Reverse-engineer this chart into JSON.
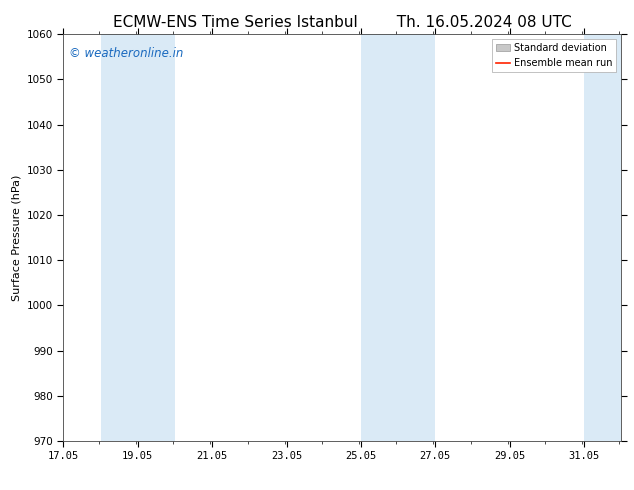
{
  "title_left": "ECMW-ENS Time Series Istanbul",
  "title_right": "Th. 16.05.2024 08 UTC",
  "ylabel": "Surface Pressure (hPa)",
  "xlim_start": 17.05,
  "xlim_end": 32.05,
  "ylim": [
    970,
    1060
  ],
  "yticks": [
    970,
    980,
    990,
    1000,
    1010,
    1020,
    1030,
    1040,
    1050,
    1060
  ],
  "xtick_labels": [
    "17.05",
    "19.05",
    "21.05",
    "23.05",
    "25.05",
    "27.05",
    "29.05",
    "31.05"
  ],
  "xtick_positions": [
    17.05,
    19.05,
    21.05,
    23.05,
    25.05,
    27.05,
    29.05,
    31.05
  ],
  "shaded_bands": [
    {
      "x_start": 18.05,
      "x_end": 19.05
    },
    {
      "x_start": 19.05,
      "x_end": 20.05
    },
    {
      "x_start": 25.05,
      "x_end": 26.05
    },
    {
      "x_start": 26.05,
      "x_end": 27.05
    },
    {
      "x_start": 31.05,
      "x_end": 32.05
    }
  ],
  "band_color": "#daeaf6",
  "watermark_text": "© weatheronline.in",
  "watermark_color": "#1a6abf",
  "legend_std_dev_color": "#c8c8c8",
  "legend_mean_run_color": "#ff2200",
  "background_color": "#ffffff",
  "title_fontsize": 11,
  "axis_label_fontsize": 8,
  "tick_fontsize": 7.5,
  "watermark_fontsize": 8.5
}
